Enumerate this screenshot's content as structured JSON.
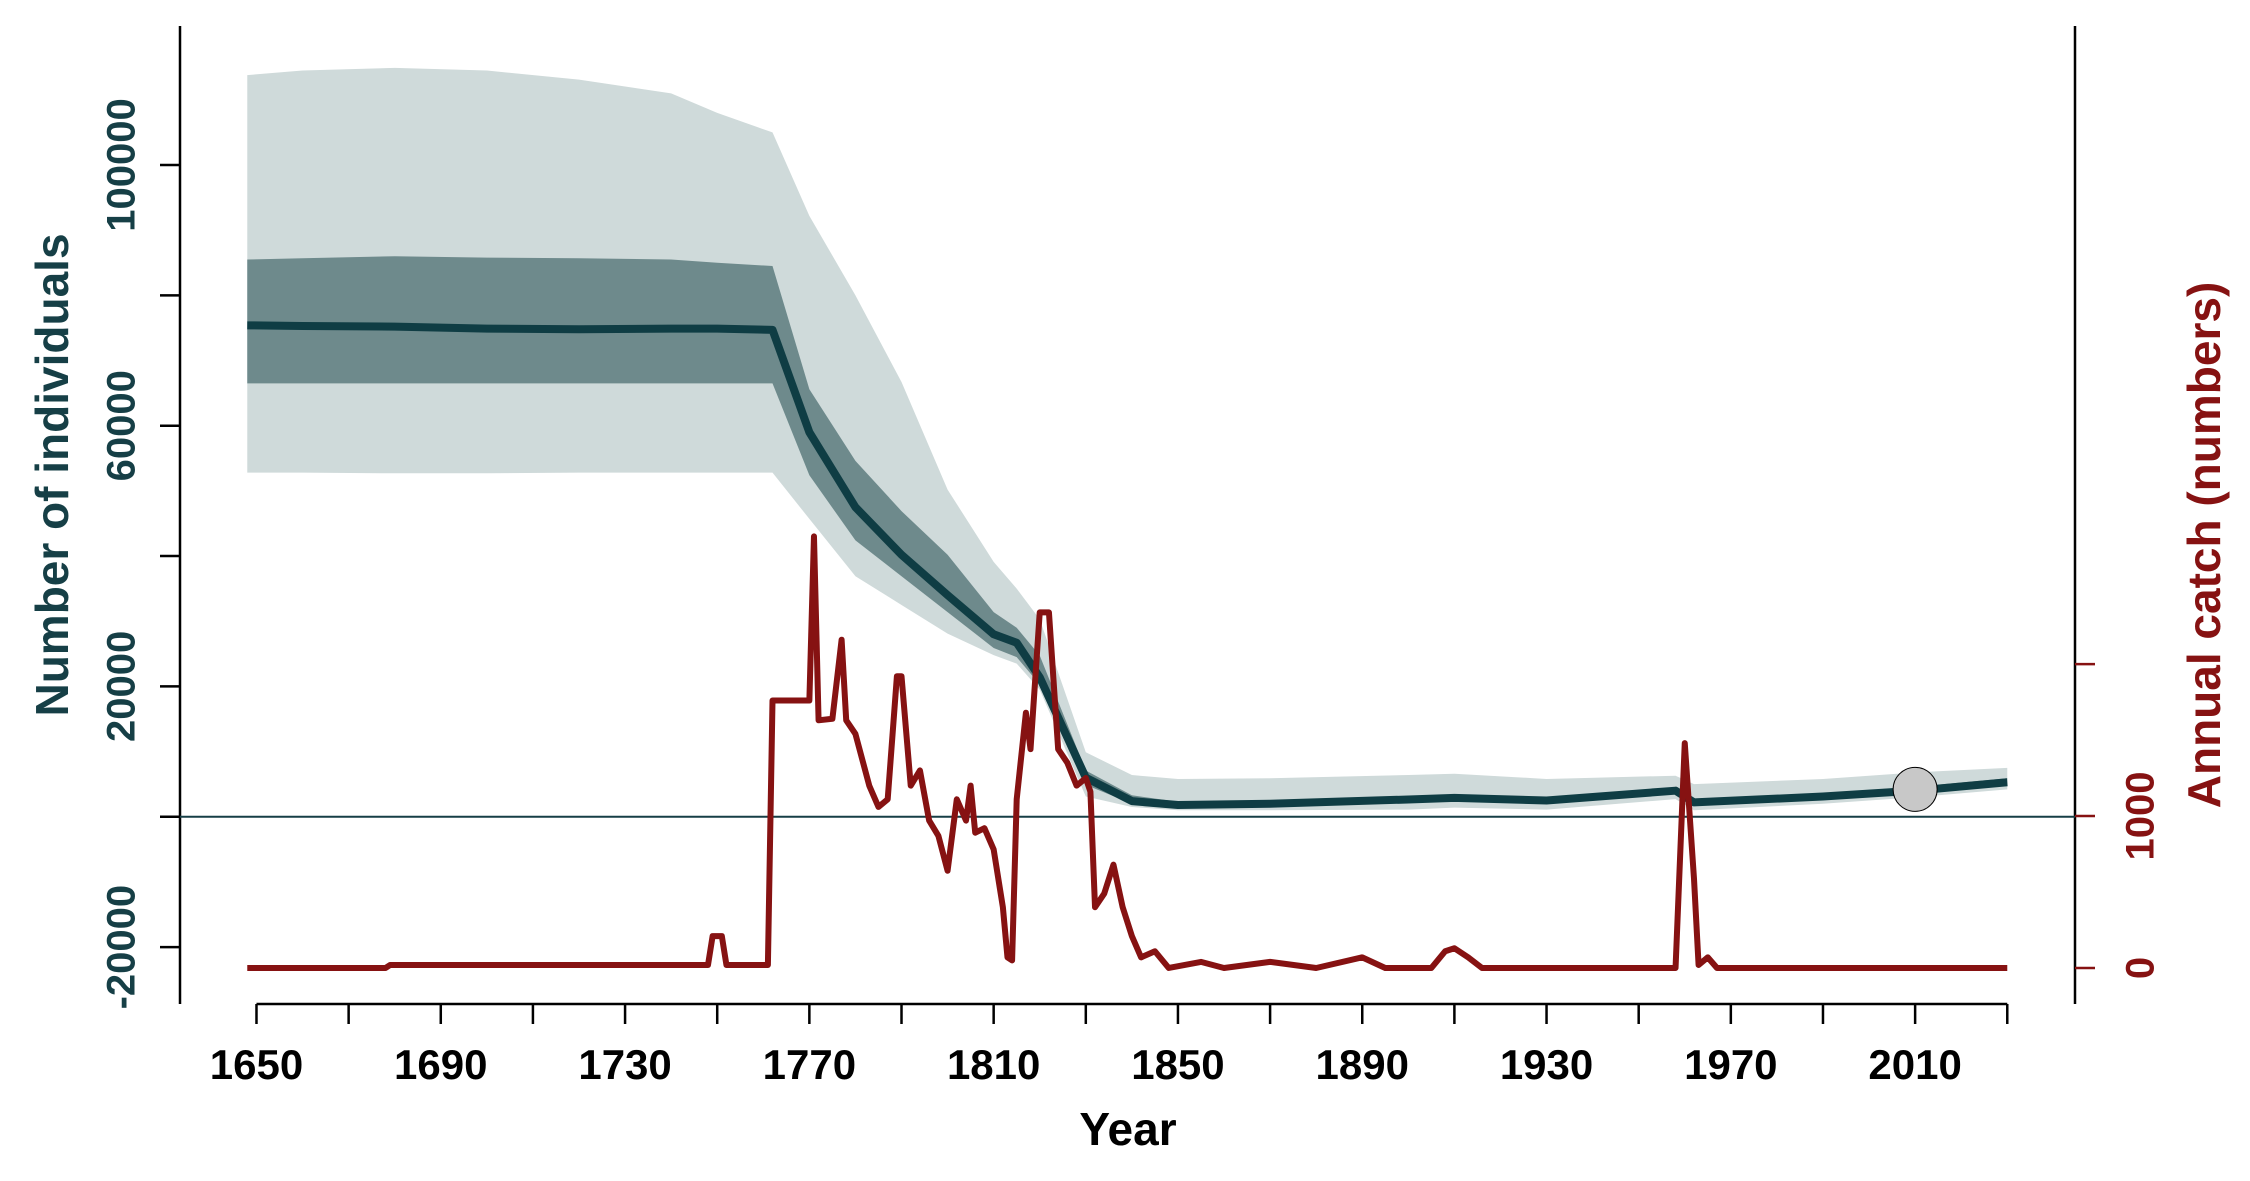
{
  "chart_data": {
    "type": "line",
    "x_label": "Year",
    "y_label": "Number of individuals",
    "y2_label": "Annual catch (numbers)",
    "y_label_color": "#163f46",
    "y2_label_color": "#861212",
    "xlim": [
      1633.4,
      2044.7
    ],
    "ylim": [
      -28730,
      121330
    ],
    "y2lim": [
      -237,
      6199
    ],
    "xticks": [
      1650,
      {
        "value": 1670,
        "label": null
      },
      1690,
      {
        "value": 1710,
        "label": null
      },
      1730,
      {
        "value": 1750,
        "label": null
      },
      1770,
      {
        "value": 1790,
        "label": null
      },
      1810,
      {
        "value": 1830,
        "label": null
      },
      1850,
      {
        "value": 1870,
        "label": null
      },
      1890,
      {
        "value": 1910,
        "label": null
      },
      1930,
      {
        "value": 1950,
        "label": null
      },
      1970,
      {
        "value": 1990,
        "label": null
      },
      2010,
      {
        "value": 2030,
        "label": null
      }
    ],
    "yticks": [
      -20000,
      {
        "value": 0,
        "label": null
      },
      20000,
      {
        "value": 40000,
        "label": null
      },
      60000,
      {
        "value": 80000,
        "label": null
      },
      100000
    ],
    "y2ticks": [
      0,
      1000,
      {
        "value": 2000,
        "label": null
      }
    ],
    "hline": 0,
    "x": [
      1648,
      1660,
      1680,
      1700,
      1720,
      1740,
      1750,
      1762,
      1770,
      1780,
      1790,
      1800,
      1810,
      1815,
      1820,
      1830,
      1840,
      1850,
      1870,
      1900,
      1910,
      1930,
      1958,
      1962,
      1990,
      2010,
      2030
    ],
    "series": [
      {
        "kind": "band",
        "color": "#cfdada",
        "lower": [
          52800,
          52800,
          52700,
          52700,
          52800,
          52800,
          52800,
          52800,
          45700,
          36900,
          32500,
          28100,
          24800,
          23500,
          19500,
          3100,
          1500,
          1000,
          1000,
          1100,
          1400,
          1100,
          2700,
          1000,
          2000,
          3000,
          4200
        ],
        "upper": [
          113800,
          114500,
          114900,
          114500,
          113100,
          111000,
          108000,
          105000,
          92200,
          80000,
          66700,
          50200,
          39100,
          35000,
          30300,
          9900,
          6400,
          5800,
          5900,
          6400,
          6600,
          5800,
          6300,
          5000,
          5800,
          6800,
          7500
        ]
      },
      {
        "kind": "band",
        "color": "#6e8a8c",
        "lower": [
          66500,
          66500,
          66500,
          66500,
          66500,
          66500,
          66500,
          66500,
          52400,
          42400,
          36900,
          31400,
          25900,
          24500,
          20300,
          4900,
          2000,
          1400,
          1500,
          2100,
          2400,
          2000,
          3500,
          1700,
          2600,
          3500,
          4800
        ],
        "upper": [
          85500,
          85700,
          86000,
          85800,
          85700,
          85500,
          85000,
          84500,
          65600,
          54600,
          46900,
          40200,
          31400,
          29000,
          24750,
          7100,
          3300,
          2300,
          2500,
          3200,
          3400,
          3000,
          4500,
          2700,
          3600,
          4600,
          5900
        ]
      },
      {
        "kind": "line",
        "color": "#0f3d44",
        "values": [
          75400,
          75300,
          75200,
          74900,
          74800,
          74900,
          74900,
          74700,
          59000,
          47500,
          40200,
          34000,
          28000,
          26700,
          21400,
          6000,
          2400,
          1800,
          2000,
          2650,
          2900,
          2500,
          4000,
          2200,
          3100,
          4000,
          5300
        ]
      },
      {
        "kind": "line",
        "axis": "y2",
        "color": "#861212",
        "x": [
          1648,
          1678,
          1679,
          1748,
          1749,
          1751,
          1752,
          1761,
          1762,
          1770,
          1771,
          1772,
          1775,
          1777,
          1778,
          1780,
          1783,
          1785,
          1787,
          1789,
          1790,
          1792,
          1794,
          1796,
          1798,
          1800,
          1802,
          1804,
          1805,
          1806,
          1808,
          1810,
          1812,
          1813,
          1814,
          1815,
          1817,
          1818,
          1820,
          1822,
          1824,
          1826,
          1828,
          1830,
          1831,
          1832,
          1834,
          1836,
          1838,
          1840,
          1842,
          1845,
          1848,
          1855,
          1860,
          1870,
          1880,
          1890,
          1895,
          1905,
          1908,
          1910,
          1913,
          1916,
          1958,
          1960,
          1962,
          1963,
          1965,
          1967,
          2030
        ],
        "values": [
          0,
          0,
          20,
          20,
          210,
          210,
          20,
          20,
          1760,
          1760,
          2840,
          1630,
          1640,
          2160,
          1630,
          1540,
          1200,
          1060,
          1110,
          1920,
          1920,
          1200,
          1300,
          970,
          870,
          640,
          1110,
          970,
          1200,
          890,
          920,
          780,
          400,
          70,
          50,
          1110,
          1680,
          1440,
          2340,
          2340,
          1440,
          1350,
          1200,
          1250,
          1160,
          400,
          490,
          680,
          400,
          210,
          70,
          110,
          0,
          40,
          0,
          40,
          0,
          70,
          0,
          0,
          110,
          130,
          70,
          0,
          0,
          1480,
          590,
          20,
          70,
          0,
          0
        ]
      }
    ],
    "marker": {
      "x": 2010,
      "value": 4200,
      "color": "#c8c8c8"
    }
  }
}
